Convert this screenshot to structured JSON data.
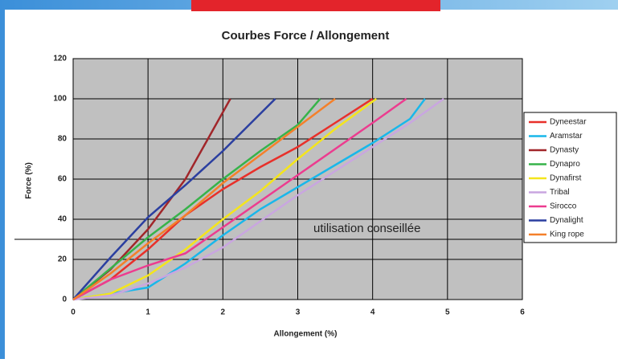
{
  "chart_data": {
    "type": "line",
    "title": "Courbes Force / Allongement",
    "x_label": "Allongement (%)",
    "y_label": "Force (%)",
    "xlim": [
      0,
      6
    ],
    "xticks": [
      0,
      1,
      2,
      3,
      4,
      5,
      6
    ],
    "ylim": [
      0,
      120
    ],
    "yticks": [
      0,
      20,
      40,
      60,
      80,
      100,
      120
    ],
    "grid": true,
    "legend": "right",
    "annotation": {
      "text": "utilisation conseillée",
      "y": 30
    },
    "series": [
      {
        "name": "Dyneestar",
        "color": "#e8302a",
        "x": [
          0,
          0.5,
          1,
          1.5,
          2,
          2.5,
          3,
          3.5,
          4
        ],
        "values": [
          0,
          10,
          25,
          42,
          55,
          66,
          76,
          88,
          100
        ]
      },
      {
        "name": "Aramstar",
        "color": "#19b7ea",
        "x": [
          0,
          1,
          1.5,
          2,
          2.5,
          3,
          3.5,
          4,
          4.5,
          4.7
        ],
        "values": [
          0,
          6,
          18,
          32,
          45,
          56,
          67,
          78,
          90,
          100
        ]
      },
      {
        "name": "Dynasty",
        "color": "#a1262a",
        "x": [
          0,
          0.5,
          1,
          1.5,
          2.1
        ],
        "values": [
          0,
          15,
          35,
          60,
          100
        ]
      },
      {
        "name": "Dynapro",
        "color": "#37b34a",
        "x": [
          0,
          1,
          1.5,
          2,
          2.5,
          3,
          3.3
        ],
        "values": [
          0,
          31,
          45,
          60,
          74,
          87,
          100
        ]
      },
      {
        "name": "Dynafirst",
        "color": "#f4e51c",
        "x": [
          0,
          0.5,
          1,
          1.5,
          2,
          2.5,
          3,
          3.5,
          4.05
        ],
        "values": [
          0,
          3,
          12,
          25,
          40,
          54,
          70,
          85,
          100
        ]
      },
      {
        "name": "Tribal",
        "color": "#c9a6e0",
        "x": [
          0,
          0.5,
          1,
          1.5,
          2,
          2.5,
          3,
          3.5,
          4,
          4.5,
          4.95
        ],
        "values": [
          0,
          2,
          8,
          16,
          26,
          39,
          52,
          64,
          76,
          88,
          100
        ]
      },
      {
        "name": "Sirocco",
        "color": "#ec3c8f",
        "x": [
          0,
          0.5,
          1,
          1.5,
          2,
          2.5,
          3,
          3.5,
          4,
          4.45
        ],
        "values": [
          0,
          10,
          17,
          23,
          36,
          49,
          62,
          75,
          88,
          100
        ]
      },
      {
        "name": "Dynalight",
        "color": "#2b3fa0",
        "x": [
          0,
          0.5,
          1,
          1.5,
          2,
          2.7
        ],
        "values": [
          0,
          21,
          41,
          57,
          74,
          100
        ]
      },
      {
        "name": "King rope",
        "color": "#f4802a",
        "x": [
          0,
          0.5,
          1,
          1.5,
          2,
          2.5,
          3,
          3.5
        ],
        "values": [
          0,
          13,
          28,
          42,
          58,
          72,
          86,
          100
        ]
      }
    ]
  }
}
